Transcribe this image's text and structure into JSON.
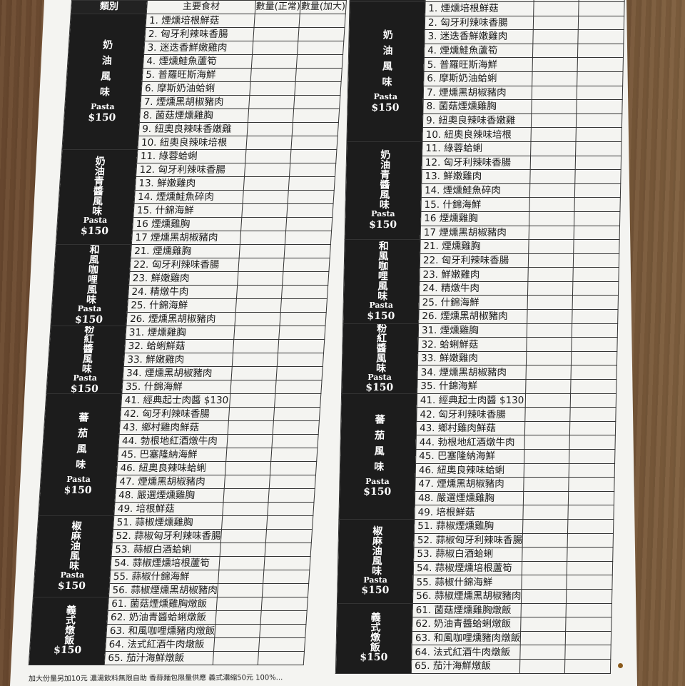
{
  "header": {
    "category": "類別",
    "ingredients": "主要食材",
    "qty_normal": "數量(正常)",
    "qty_large": "數量(加大)"
  },
  "categories": [
    {
      "name": "奶油風味",
      "pasta": "Pasta",
      "price": "$150",
      "items": [
        "1. 煙燻培根鮮菇",
        "2. 匈牙利辣味香腸",
        "3. 迷迭香鮮嫩雞肉",
        "4. 煙燻鮭魚蘆筍",
        "5. 普羅旺斯海鮮",
        "6. 摩斯奶油蛤蜊",
        "7. 煙燻黑胡椒豬肉",
        "8. 菌菇煙燻雞胸",
        "9. 紐奧良辣味香嫩雞",
        "10. 紐奧良辣味培根"
      ]
    },
    {
      "name": "奶油青醬風味",
      "pasta": "Pasta",
      "price": "$150",
      "items": [
        "11. 綠蓉蛤蜊",
        "12. 匈牙利辣味香腸",
        "13. 鮮嫩雞肉",
        "14. 煙燻鮭魚碎肉",
        "15. 什錦海鮮",
        "16 煙燻雞胸",
        "17 煙燻黑胡椒豬肉"
      ]
    },
    {
      "name": "和風咖哩風味",
      "pasta": "Pasta",
      "price": "$150",
      "items": [
        "21. 煙燻雞胸",
        "22. 匈牙利辣味香腸",
        "23. 鮮嫩雞肉",
        "24. 精燉牛肉",
        "25. 什錦海鮮",
        "26. 煙燻黑胡椒豬肉"
      ]
    },
    {
      "name": "粉紅醬風味",
      "pasta": "Pasta",
      "price": "$150",
      "items": [
        "31. 煙燻雞胸",
        "32. 蛤蜊鮮菇",
        "33. 鮮嫩雞肉",
        "34. 煙燻黑胡椒豬肉",
        "35. 什錦海鮮"
      ]
    },
    {
      "name": "蕃茄風味",
      "pasta": "Pasta",
      "price": "$150",
      "items": [
        "41. 經典起士肉醬 $130",
        "42. 匈牙利辣味香腸",
        "43. 鄉村雞肉鮮菇",
        "44. 勃根地紅酒燉牛肉",
        "45. 巴塞隆納海鮮",
        "46. 紐奧良辣味蛤蜊",
        "47. 煙燻黑胡椒豬肉",
        "48. 嚴選煙燻雞胸",
        "49. 培根鮮菇"
      ]
    },
    {
      "name": "椒麻油風味",
      "pasta": "Pasta",
      "price": "$150",
      "items": [
        "51. 蒜椒煙燻雞胸",
        "52. 蒜椒匈牙利辣味香腸",
        "53. 蒜椒白酒蛤蜊",
        "54. 蒜椒煙燻培根蘆筍",
        "55. 蒜椒什錦海鮮",
        "56. 蒜椒煙燻黑胡椒豬肉"
      ]
    },
    {
      "name": "義式燉飯",
      "pasta": "",
      "price": "$150",
      "items": [
        "61. 菌菇煙燻雞胸燉飯",
        "62. 奶油青醬蛤蜊燉飯",
        "63. 和風咖哩燻豬肉燉飯",
        "64. 法式紅酒牛肉燉飯",
        "65. 茄汁海鮮燉飯"
      ]
    }
  ],
  "footer": {
    "note": "加大份量另加10元 濃湯飲料無限自助 香蒜麵包限量供應 義式濃縮50元 100%..."
  },
  "colors": {
    "category_bg": "#1c1c1c",
    "paper": "#f4f4f1",
    "table_wood": "#6b4a30"
  }
}
